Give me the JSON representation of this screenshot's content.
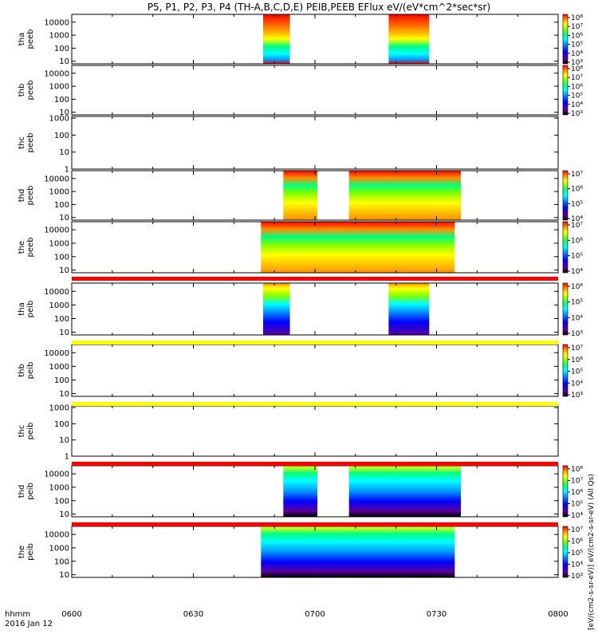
{
  "title": "P5, P1, P2, P3, P4 (TH-A,B,C,D,E) PEIB,PEEB EFlux eV/(eV*cm^2*sec*sr)",
  "x_axis": {
    "ticks": [
      "0600",
      "0630",
      "0700",
      "0730",
      "0800"
    ],
    "tick_hours": [
      6.0,
      6.5,
      7.0,
      7.5,
      8.0
    ],
    "label_line1": "hhmm",
    "label_line2": "2016 Jan 12",
    "range": [
      6.0,
      8.0
    ]
  },
  "colors": {
    "rainbow": [
      "#000000",
      "#5a00a0",
      "#0000ff",
      "#0096ff",
      "#00ffff",
      "#00ff80",
      "#80ff00",
      "#ffff00",
      "#ff9000",
      "#ff0000"
    ],
    "strip_red": "#ff0000",
    "strip_yellow": "#ffff00"
  },
  "chart_data": {
    "type": "heatmap",
    "panels": [
      {
        "id": "tha-peeb",
        "label": [
          "tha",
          "peeb"
        ],
        "yticks": [
          "10",
          "100",
          "1000",
          "10000"
        ],
        "ylog": [
          0.8,
          4.6
        ],
        "blocks": [
          {
            "t0": 6.787,
            "t1": 6.897,
            "eflux_level": "high"
          },
          {
            "t0": 7.303,
            "t1": 7.47,
            "eflux_level": "high"
          }
        ],
        "cbar_ticks": [
          "10³",
          "10⁴",
          "10⁵",
          "10⁶",
          "10⁷",
          "10⁸"
        ],
        "cbar_label": "eV/(cm^2-s-sr-eV) (All Qs)"
      },
      {
        "id": "thb-peeb",
        "label": [
          "thb",
          "peeb"
        ],
        "yticks": [
          "10",
          "100",
          "1000",
          "10000"
        ],
        "ylog": [
          0.8,
          4.6
        ],
        "blocks": [],
        "cbar_ticks": [
          "10³",
          "10⁴",
          "10⁵",
          "10⁶",
          "10⁷",
          "10⁸"
        ],
        "cbar_label": "eV/(cm^2-s-sr-eV) (All Qs)"
      },
      {
        "id": "thc-peeb",
        "label": [
          "thc",
          "peeb"
        ],
        "yticks": [
          "1",
          "10",
          "100",
          "1000"
        ],
        "ylog": [
          0,
          3.1
        ],
        "blocks": [],
        "cbar_ticks": [],
        "cbar_label": ""
      },
      {
        "id": "thd-peeb",
        "label": [
          "thd",
          "peeb"
        ],
        "yticks": [
          "10",
          "100",
          "1000",
          "10000"
        ],
        "ylog": [
          0.8,
          4.6
        ],
        "blocks": [
          {
            "t0": 6.87,
            "t1": 7.01,
            "eflux_level": "high"
          },
          {
            "t0": 7.14,
            "t1": 7.6,
            "eflux_level": "high"
          }
        ],
        "cbar_ticks": [
          "10⁴",
          "10⁵",
          "10⁶",
          "10⁷"
        ],
        "cbar_label": "eV/(cm^2-s-sr-eV) (All Qs)"
      },
      {
        "id": "the-peeb",
        "label": [
          "the",
          "peeb"
        ],
        "yticks": [
          "10",
          "100",
          "1000",
          "10000"
        ],
        "ylog": [
          0.8,
          4.6
        ],
        "blocks": [
          {
            "t0": 6.778,
            "t1": 7.575,
            "eflux_level": "high"
          }
        ],
        "cbar_ticks": [
          "10⁴",
          "10⁵",
          "10⁶",
          "10⁷"
        ],
        "cbar_label": "eV/(cm^2-s-sr-eV) (All Qs)"
      },
      {
        "id": "tha-peib",
        "label": [
          "tha",
          "peib"
        ],
        "yticks": [
          "10",
          "100",
          "1000",
          "10000"
        ],
        "ylog": [
          0.8,
          4.6
        ],
        "blocks": [
          {
            "t0": 6.787,
            "t1": 6.897,
            "eflux_level": "low"
          },
          {
            "t0": 7.303,
            "t1": 7.47,
            "eflux_level": "low"
          }
        ],
        "cbar_ticks": [
          "10³",
          "10⁴",
          "10⁵",
          "10⁶"
        ],
        "cbar_label": "eV/(cm^2-s-sr-eV) (All Qs)"
      },
      {
        "id": "thb-peib",
        "label": [
          "thb",
          "peib"
        ],
        "yticks": [
          "10",
          "100",
          "1000",
          "10000"
        ],
        "ylog": [
          0.8,
          4.6
        ],
        "blocks": [],
        "cbar_ticks": [
          "10³",
          "10⁴",
          "10⁵",
          "10⁶",
          "10⁷"
        ],
        "cbar_label": "eV/(cm^2-s-sr-eV) (All Qs)"
      },
      {
        "id": "thc-peib",
        "label": [
          "thc",
          "peib"
        ],
        "yticks": [
          "1",
          "10",
          "100",
          "1000"
        ],
        "ylog": [
          0,
          3.1
        ],
        "blocks": [],
        "cbar_ticks": [],
        "cbar_label": ""
      },
      {
        "id": "thd-peib",
        "label": [
          "thd",
          "peib"
        ],
        "yticks": [
          "10",
          "100",
          "1000",
          "10000"
        ],
        "ylog": [
          0.8,
          4.6
        ],
        "blocks": [
          {
            "t0": 6.87,
            "t1": 7.01,
            "eflux_level": "mid"
          },
          {
            "t0": 7.14,
            "t1": 7.6,
            "eflux_level": "mid"
          }
        ],
        "cbar_ticks": [
          "10⁴",
          "10⁵",
          "10⁶",
          "10⁷",
          "10⁸"
        ],
        "cbar_label": "eV/(cm^2-s-sr-eV) (All Qs)"
      },
      {
        "id": "the-peib",
        "label": [
          "the",
          "peib"
        ],
        "yticks": [
          "10",
          "100",
          "1000",
          "10000"
        ],
        "ylog": [
          0.8,
          4.6
        ],
        "blocks": [
          {
            "t0": 6.778,
            "t1": 7.575,
            "eflux_level": "mid"
          }
        ],
        "cbar_ticks": [
          "10³",
          "10⁴",
          "10⁵",
          "10⁶",
          "10⁷"
        ],
        "cbar_label": "eV/(cm^2-s-sr-eV) (All Qs)"
      }
    ],
    "strips": [
      {
        "after_panel": "the-peeb",
        "color": "red"
      },
      {
        "after_panel": "tha-peib",
        "color": "yellow"
      },
      {
        "after_panel": "thb-peib",
        "color": "yellow"
      },
      {
        "after_panel": "thc-peib",
        "color": "red"
      },
      {
        "after_panel": "thd-peib",
        "color": "red"
      }
    ],
    "right_label": "[eV/(cm2-s-sr-eV)] eV/(cm2-s-sr-eV) (All Qs)"
  }
}
